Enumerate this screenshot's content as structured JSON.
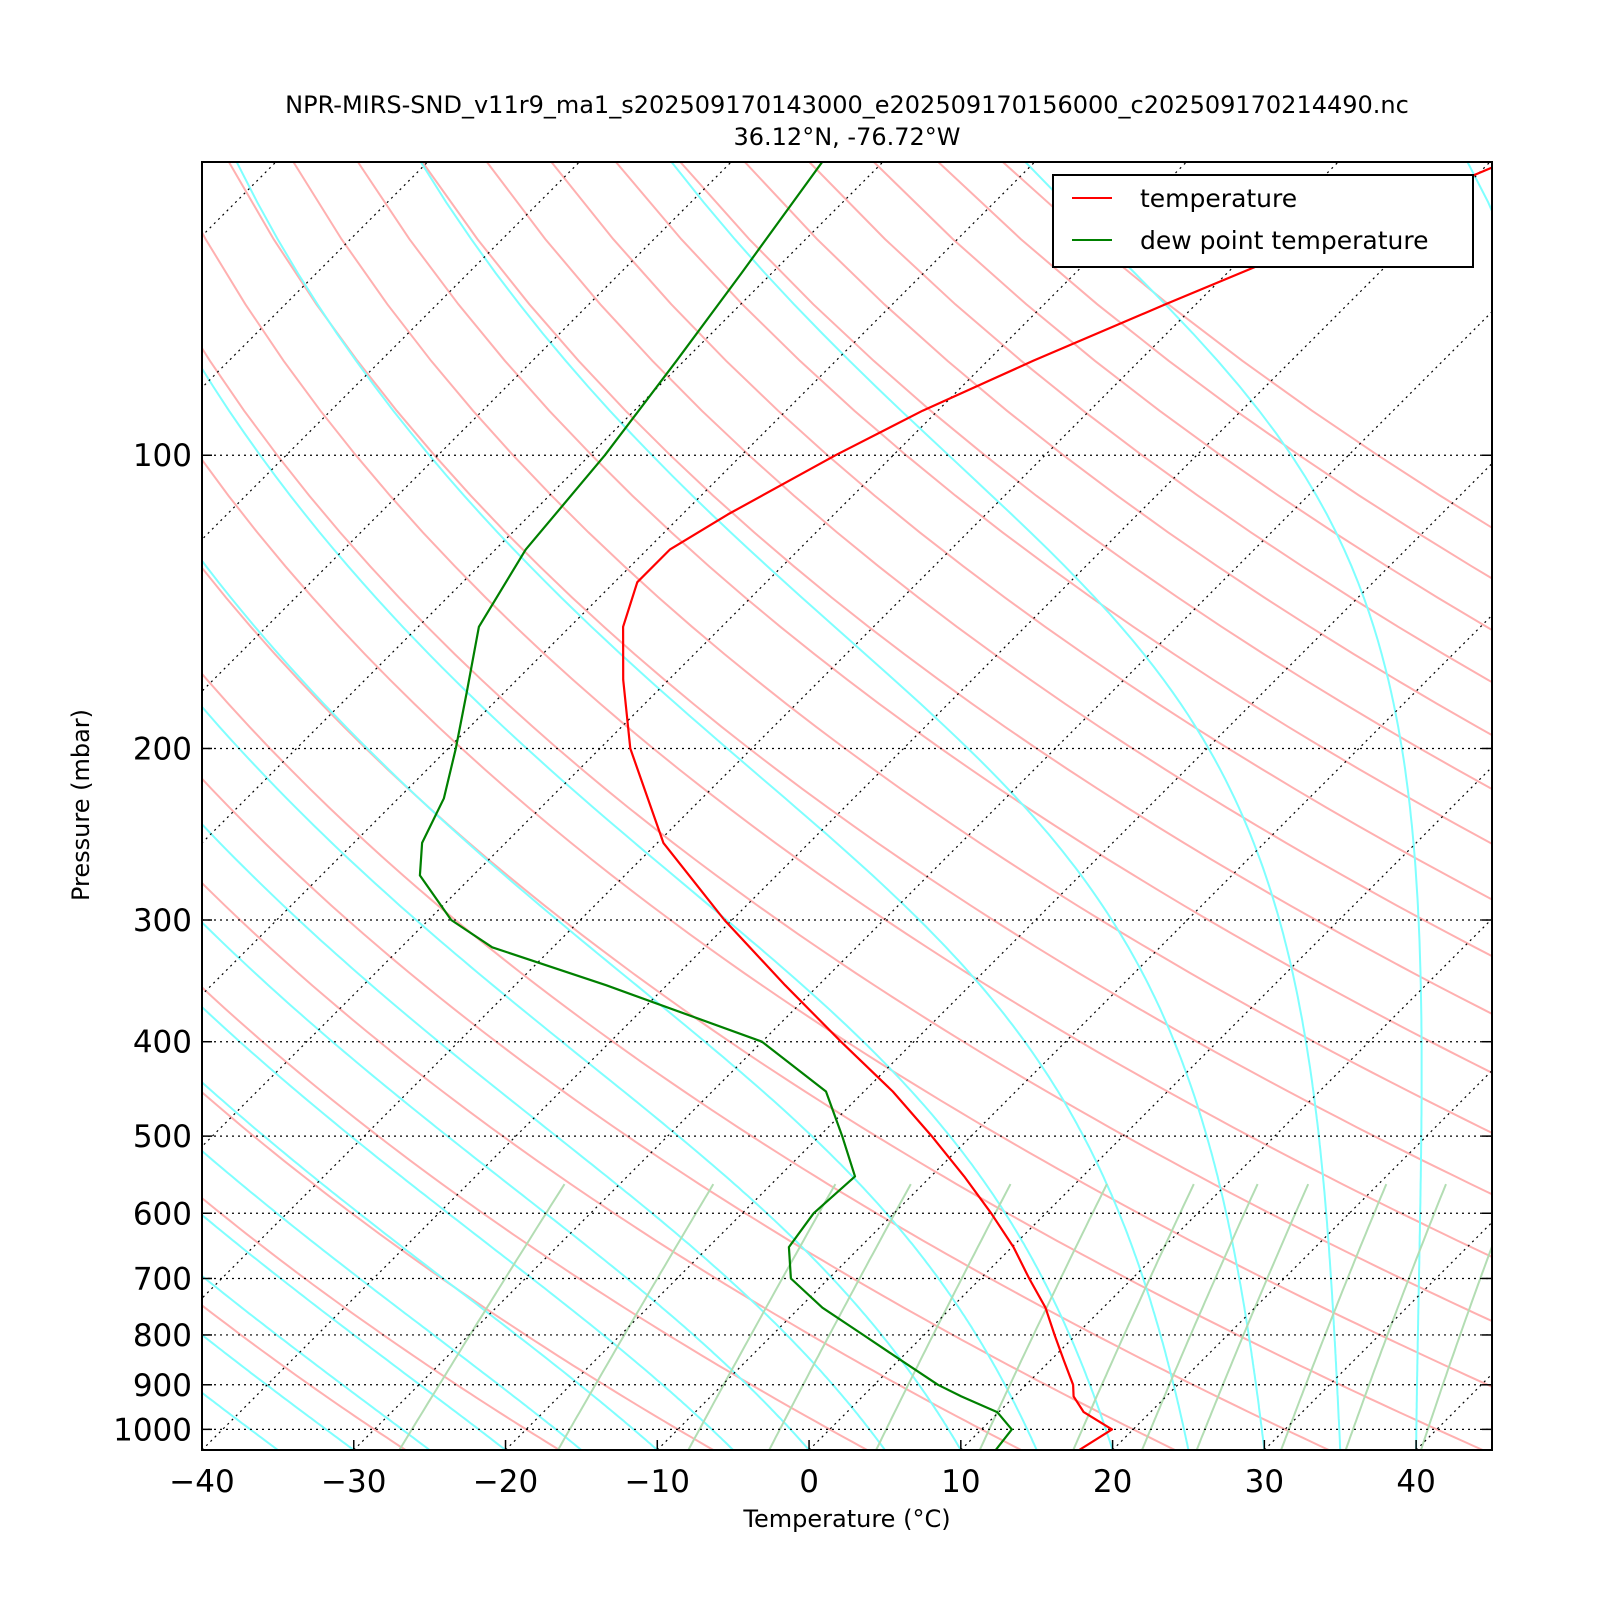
{
  "chart_data": {
    "type": "line",
    "chart_kind": "skew-T log-P diagram",
    "title": "NPR-MIRS-SND_v11r9_ma1_s202509170143000_e202509170156000_c202509170214490.nc",
    "subtitle": "36.12°N, -76.72°W",
    "xlabel": "Temperature (°C)",
    "ylabel": "Pressure (mbar)",
    "xlim": [
      -40,
      45
    ],
    "ylim": [
      1050,
      50
    ],
    "y_scale": "log",
    "skew": "isotherms slanted right with height",
    "x_ticks": [
      -40,
      -30,
      -20,
      -10,
      0,
      10,
      20,
      30,
      40
    ],
    "x_tick_labels": [
      "−40",
      "−30",
      "−20",
      "−10",
      "0",
      "10",
      "20",
      "30",
      "40"
    ],
    "y_ticks": [
      100,
      200,
      300,
      400,
      500,
      600,
      700,
      800,
      900,
      1000
    ],
    "y_tick_labels": [
      "100",
      "200",
      "300",
      "400",
      "500",
      "600",
      "700",
      "800",
      "900",
      "1000"
    ],
    "grid": "dotted horizontal isobars and dotted skewed isotherms",
    "legend_position": "top-right",
    "series": [
      {
        "name": "temperature",
        "color": "#ff0000",
        "points": [
          {
            "p": 1050,
            "t": 17.8
          },
          {
            "p": 1000,
            "t": 18.6
          },
          {
            "p": 960,
            "t": 15.6
          },
          {
            "p": 925,
            "t": 13.9
          },
          {
            "p": 900,
            "t": 13.1
          },
          {
            "p": 850,
            "t": 10.9
          },
          {
            "p": 800,
            "t": 8.6
          },
          {
            "p": 750,
            "t": 6.2
          },
          {
            "p": 700,
            "t": 3.2
          },
          {
            "p": 650,
            "t": 0.1
          },
          {
            "p": 600,
            "t": -3.6
          },
          {
            "p": 550,
            "t": -7.8
          },
          {
            "p": 500,
            "t": -12.6
          },
          {
            "p": 450,
            "t": -18.1
          },
          {
            "p": 400,
            "t": -24.8
          },
          {
            "p": 350,
            "t": -32.2
          },
          {
            "p": 300,
            "t": -40.5
          },
          {
            "p": 250,
            "t": -49.6
          },
          {
            "p": 200,
            "t": -58.0
          },
          {
            "p": 170,
            "t": -63.0
          },
          {
            "p": 150,
            "t": -66.5
          },
          {
            "p": 135,
            "t": -68.5
          },
          {
            "p": 125,
            "t": -68.5
          },
          {
            "p": 115,
            "t": -67.0
          },
          {
            "p": 100,
            "t": -63.8
          },
          {
            "p": 90,
            "t": -61.0
          },
          {
            "p": 80,
            "t": -57.0
          },
          {
            "p": 70,
            "t": -52.0
          },
          {
            "p": 60,
            "t": -46.0
          },
          {
            "p": 50,
            "t": -39.0
          }
        ]
      },
      {
        "name": "dew point temperature",
        "color": "#008000",
        "points": [
          {
            "p": 1050,
            "t": 12.3
          },
          {
            "p": 1000,
            "t": 12.0
          },
          {
            "p": 960,
            "t": 9.9
          },
          {
            "p": 925,
            "t": 6.5
          },
          {
            "p": 900,
            "t": 4.2
          },
          {
            "p": 850,
            "t": 0.2
          },
          {
            "p": 800,
            "t": -4.0
          },
          {
            "p": 750,
            "t": -8.5
          },
          {
            "p": 700,
            "t": -12.5
          },
          {
            "p": 650,
            "t": -14.7
          },
          {
            "p": 600,
            "t": -15.3
          },
          {
            "p": 550,
            "t": -15.0
          },
          {
            "p": 500,
            "t": -18.5
          },
          {
            "p": 450,
            "t": -22.5
          },
          {
            "p": 400,
            "t": -30.0
          },
          {
            "p": 350,
            "t": -44.0
          },
          {
            "p": 320,
            "t": -54.0
          },
          {
            "p": 300,
            "t": -58.5
          },
          {
            "p": 270,
            "t": -63.5
          },
          {
            "p": 250,
            "t": -65.5
          },
          {
            "p": 225,
            "t": -67.0
          },
          {
            "p": 200,
            "t": -69.5
          },
          {
            "p": 175,
            "t": -72.5
          },
          {
            "p": 150,
            "t": -76.0
          },
          {
            "p": 125,
            "t": -78.0
          },
          {
            "p": 100,
            "t": -79.0
          },
          {
            "p": 80,
            "t": -80.5
          },
          {
            "p": 65,
            "t": -82.0
          },
          {
            "p": 50,
            "t": -84.0
          }
        ]
      }
    ],
    "reference_lines": {
      "dry_adiabats_color": "#ffb0b0",
      "moist_adiabats_color": "#7fffff",
      "mixing_ratio_color": "#b3ddb3",
      "isotherm_and_isobar_color": "#000000"
    }
  }
}
